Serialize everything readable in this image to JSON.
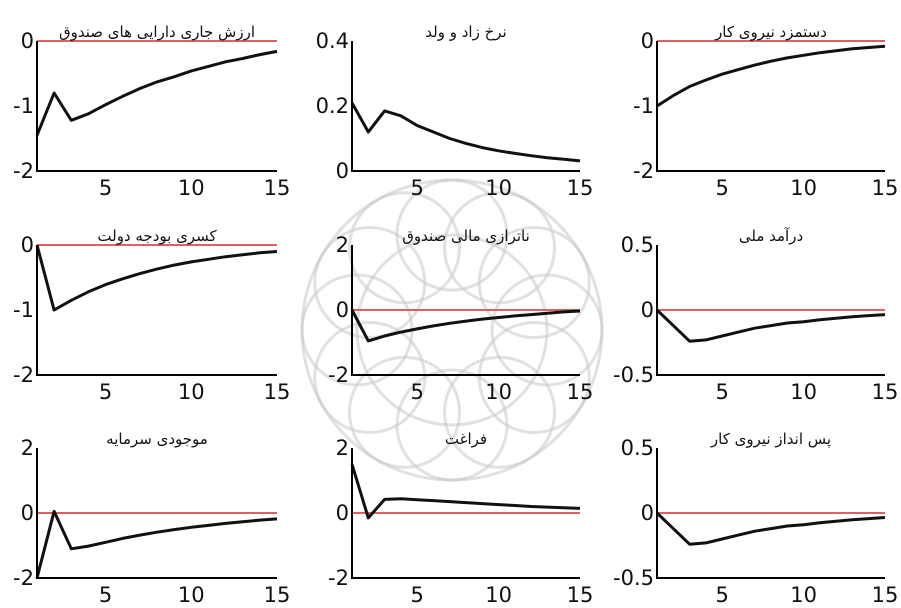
{
  "chart_data": [
    {
      "type": "line",
      "title": "ارزش جاری دارایی های صندوق",
      "xlim": [
        1,
        15
      ],
      "ylim": [
        -2,
        0
      ],
      "xticks": [
        "5",
        "10",
        "15"
      ],
      "yticks": [
        "0",
        "-1",
        "-2"
      ],
      "zero_line": 0,
      "x": [
        1,
        2,
        3,
        4,
        5,
        6,
        7,
        8,
        9,
        10,
        11,
        12,
        13,
        14,
        15
      ],
      "values": [
        -1.45,
        -0.8,
        -1.22,
        -1.12,
        -0.98,
        -0.85,
        -0.73,
        -0.63,
        -0.55,
        -0.46,
        -0.39,
        -0.32,
        -0.27,
        -0.21,
        -0.16
      ]
    },
    {
      "type": "line",
      "title": "نرخ زاد و ولد",
      "xlim": [
        1,
        15
      ],
      "ylim": [
        0,
        0.4
      ],
      "xticks": [
        "5",
        "10",
        "15"
      ],
      "yticks": [
        "0.4",
        "0.2",
        "0"
      ],
      "zero_line": 0,
      "x": [
        1,
        2,
        3,
        4,
        5,
        6,
        7,
        8,
        9,
        10,
        11,
        12,
        13,
        14,
        15
      ],
      "values": [
        0.21,
        0.12,
        0.185,
        0.17,
        0.14,
        0.12,
        0.1,
        0.085,
        0.072,
        0.062,
        0.054,
        0.047,
        0.041,
        0.036,
        0.031
      ]
    },
    {
      "type": "line",
      "title": "دستمزد نیروی کار",
      "xlim": [
        1,
        15
      ],
      "ylim": [
        -2,
        0
      ],
      "xticks": [
        "5",
        "10",
        "15"
      ],
      "yticks": [
        "0",
        "-1",
        "-2"
      ],
      "zero_line": 0,
      "x": [
        1,
        2,
        3,
        4,
        5,
        6,
        7,
        8,
        9,
        10,
        11,
        12,
        13,
        14,
        15
      ],
      "values": [
        -1.0,
        -0.84,
        -0.7,
        -0.6,
        -0.51,
        -0.44,
        -0.37,
        -0.31,
        -0.26,
        -0.22,
        -0.18,
        -0.15,
        -0.12,
        -0.1,
        -0.08
      ]
    },
    {
      "type": "line",
      "title": "کسری بودجه دولت",
      "xlim": [
        1,
        15
      ],
      "ylim": [
        -2,
        0
      ],
      "xticks": [
        "5",
        "10",
        "15"
      ],
      "yticks": [
        "0",
        "-1",
        "-2"
      ],
      "zero_line": 0,
      "x": [
        1,
        2,
        3,
        4,
        5,
        6,
        7,
        8,
        9,
        10,
        11,
        12,
        13,
        14,
        15
      ],
      "values": [
        0,
        -1.0,
        -0.85,
        -0.72,
        -0.61,
        -0.52,
        -0.44,
        -0.37,
        -0.31,
        -0.26,
        -0.22,
        -0.18,
        -0.15,
        -0.12,
        -0.1
      ]
    },
    {
      "type": "line",
      "title": "ناترازی مالی صندوق",
      "xlim": [
        1,
        15
      ],
      "ylim": [
        -2,
        2
      ],
      "xticks": [
        "5",
        "10",
        "15"
      ],
      "yticks": [
        "2",
        "0",
        "-2"
      ],
      "zero_line": 0,
      "x": [
        1,
        2,
        3,
        4,
        5,
        6,
        7,
        8,
        9,
        10,
        11,
        12,
        13,
        14,
        15
      ],
      "values": [
        0,
        -0.95,
        -0.8,
        -0.68,
        -0.58,
        -0.49,
        -0.41,
        -0.34,
        -0.28,
        -0.23,
        -0.18,
        -0.14,
        -0.1,
        -0.06,
        -0.03
      ]
    },
    {
      "type": "line",
      "title": "درآمد ملی",
      "xlim": [
        1,
        15
      ],
      "ylim": [
        -0.5,
        0.5
      ],
      "xticks": [
        "5",
        "10",
        "15"
      ],
      "yticks": [
        "0.5",
        "0",
        "-0.5"
      ],
      "zero_line": 0,
      "x": [
        1,
        2,
        3,
        4,
        5,
        6,
        7,
        8,
        9,
        10,
        11,
        12,
        13,
        14,
        15
      ],
      "values": [
        0,
        -0.12,
        -0.24,
        -0.23,
        -0.2,
        -0.17,
        -0.14,
        -0.12,
        -0.1,
        -0.09,
        -0.075,
        -0.063,
        -0.052,
        -0.043,
        -0.035
      ]
    },
    {
      "type": "line",
      "title": "موجودی سرمایه",
      "xlim": [
        1,
        15
      ],
      "ylim": [
        -2,
        2
      ],
      "xticks": [
        "5",
        "10",
        "15"
      ],
      "yticks": [
        "2",
        "0",
        "-2"
      ],
      "zero_line": 0,
      "x": [
        1,
        2,
        3,
        4,
        5,
        6,
        7,
        8,
        9,
        10,
        11,
        12,
        13,
        14,
        15
      ],
      "values": [
        -2.0,
        0.05,
        -1.1,
        -1.02,
        -0.9,
        -0.78,
        -0.68,
        -0.59,
        -0.51,
        -0.44,
        -0.38,
        -0.32,
        -0.27,
        -0.22,
        -0.18
      ]
    },
    {
      "type": "line",
      "title": "فراغت",
      "xlim": [
        1,
        15
      ],
      "ylim": [
        -2,
        2
      ],
      "xticks": [
        "5",
        "10",
        "15"
      ],
      "yticks": [
        "2",
        "0",
        "-2"
      ],
      "zero_line": 0,
      "x": [
        1,
        2,
        3,
        4,
        5,
        6,
        7,
        8,
        9,
        10,
        11,
        12,
        13,
        14,
        15
      ],
      "values": [
        1.5,
        -0.15,
        0.42,
        0.44,
        0.41,
        0.38,
        0.35,
        0.32,
        0.29,
        0.26,
        0.23,
        0.2,
        0.18,
        0.16,
        0.14
      ]
    },
    {
      "type": "line",
      "title": "پس انداز نیروی کار",
      "xlim": [
        1,
        15
      ],
      "ylim": [
        -0.5,
        0.5
      ],
      "xticks": [
        "5",
        "10",
        "15"
      ],
      "yticks": [
        "0.5",
        "0",
        "-0.5"
      ],
      "zero_line": 0,
      "x": [
        1,
        2,
        3,
        4,
        5,
        6,
        7,
        8,
        9,
        10,
        11,
        12,
        13,
        14,
        15
      ],
      "values": [
        0,
        -0.12,
        -0.24,
        -0.23,
        -0.2,
        -0.17,
        -0.14,
        -0.12,
        -0.1,
        -0.09,
        -0.075,
        -0.063,
        -0.052,
        -0.043,
        -0.035
      ]
    }
  ]
}
